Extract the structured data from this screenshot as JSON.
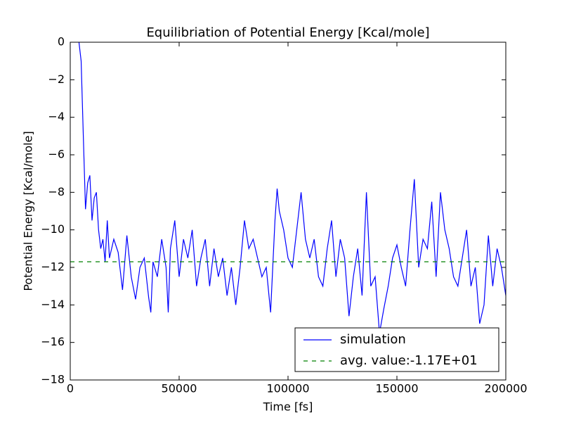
{
  "chart_data": {
    "type": "line",
    "title": "Equilibriation of Potential Energy [Kcal/mole]",
    "x_label": "Time [fs]",
    "y_label": "Potential Energy [Kcal/mole]",
    "xlim": [
      0,
      200000
    ],
    "ylim": [
      -18,
      0
    ],
    "xticks": [
      0,
      50000,
      100000,
      150000,
      200000
    ],
    "yticks": [
      {
        "value": -18,
        "label": "−18"
      },
      {
        "value": -16,
        "label": "−16"
      },
      {
        "value": -14,
        "label": "−14"
      },
      {
        "value": -12,
        "label": "−12"
      },
      {
        "value": -10,
        "label": "−10"
      },
      {
        "value": -8,
        "label": "−8"
      },
      {
        "value": -6,
        "label": "−6"
      },
      {
        "value": -4,
        "label": "−4"
      },
      {
        "value": -2,
        "label": "−2"
      },
      0
    ],
    "grid": false,
    "legend_position": "lower right",
    "series": [
      {
        "name": "simulation",
        "color": "#0000ff",
        "linestyle": "solid",
        "x": [
          4000,
          5000,
          6000,
          7000,
          8000,
          9000,
          10000,
          11000,
          12000,
          13000,
          14000,
          15000,
          16000,
          17000,
          18000,
          20000,
          22000,
          24000,
          26000,
          28000,
          30000,
          32000,
          34000,
          36000,
          37000,
          38000,
          40000,
          42000,
          44000,
          45000,
          46000,
          48000,
          50000,
          52000,
          54000,
          56000,
          58000,
          60000,
          62000,
          64000,
          66000,
          68000,
          70000,
          72000,
          74000,
          76000,
          78000,
          80000,
          82000,
          84000,
          86000,
          88000,
          90000,
          92000,
          94000,
          95000,
          96000,
          98000,
          100000,
          102000,
          104000,
          106000,
          108000,
          110000,
          112000,
          114000,
          116000,
          118000,
          120000,
          122000,
          124000,
          126000,
          128000,
          130000,
          132000,
          134000,
          136000,
          138000,
          140000,
          142000,
          144000,
          146000,
          148000,
          150000,
          152000,
          154000,
          156000,
          158000,
          160000,
          162000,
          164000,
          166000,
          168000,
          170000,
          172000,
          174000,
          176000,
          178000,
          180000,
          182000,
          184000,
          186000,
          188000,
          190000,
          192000,
          194000,
          196000,
          198000,
          200000
        ],
        "values": [
          0,
          -1,
          -5,
          -8.9,
          -7.5,
          -7.1,
          -9.5,
          -8.3,
          -8,
          -10,
          -11,
          -10.5,
          -11.7,
          -9.5,
          -11.5,
          -10.5,
          -11.2,
          -13.2,
          -10.3,
          -12.5,
          -13.7,
          -12,
          -11.5,
          -13.6,
          -14.4,
          -11.7,
          -12.5,
          -10.5,
          -12,
          -14.4,
          -11,
          -9.5,
          -12.5,
          -10.5,
          -11.5,
          -10,
          -13,
          -11.5,
          -10.5,
          -13,
          -11,
          -12.5,
          -11.5,
          -13.5,
          -12,
          -14,
          -12,
          -9.5,
          -11,
          -10.5,
          -11.5,
          -12.5,
          -12,
          -14.4,
          -9.5,
          -7.8,
          -9,
          -10,
          -11.5,
          -12,
          -10,
          -8,
          -10.5,
          -11.5,
          -10.5,
          -12.5,
          -13,
          -11,
          -9.5,
          -12.5,
          -10.5,
          -11.5,
          -14.6,
          -12.5,
          -11,
          -13.5,
          -8,
          -13,
          -12.5,
          -15.5,
          -14.2,
          -13,
          -11.5,
          -10.8,
          -12,
          -13,
          -10,
          -7.3,
          -12,
          -10.5,
          -11,
          -8.5,
          -12.5,
          -8,
          -10,
          -11,
          -12.5,
          -13,
          -11.5,
          -10,
          -13,
          -12,
          -15,
          -14,
          -10.3,
          -13,
          -11,
          -12,
          -13.5
        ]
      },
      {
        "name": "avg. value:-1.17E+01",
        "color": "#008000",
        "linestyle": "dashed",
        "x": [
          0,
          200000
        ],
        "values": [
          -11.7,
          -11.7
        ]
      }
    ]
  }
}
